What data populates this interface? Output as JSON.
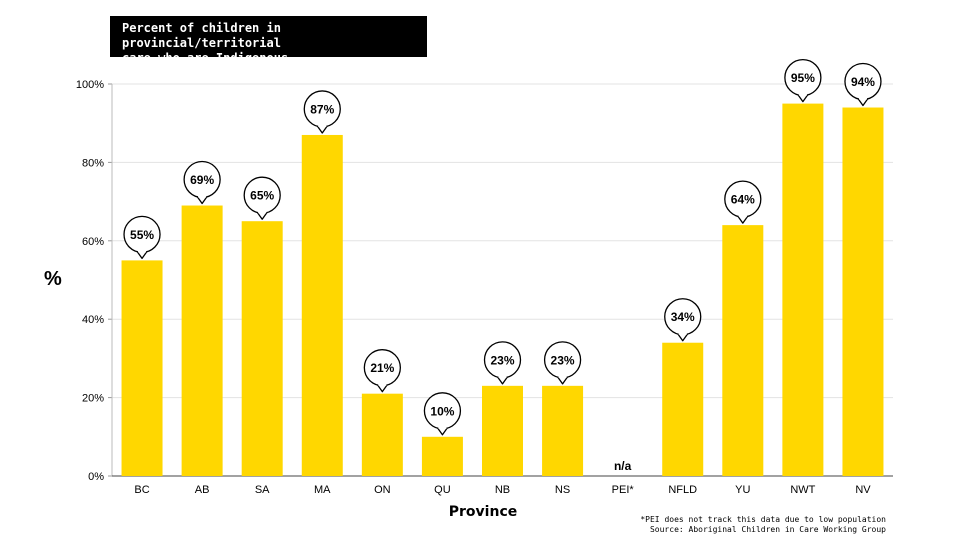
{
  "chart_data": {
    "type": "bar",
    "title_lines": [
      "Percent of children in provincial/territorial",
      "care who are Indigenous"
    ],
    "xlabel": "Province",
    "ylabel": "%",
    "categories": [
      "BC",
      "AB",
      "SA",
      "MA",
      "ON",
      "QU",
      "NB",
      "NS",
      "PEI*",
      "NFLD",
      "YU",
      "NWT",
      "NV"
    ],
    "values": [
      55,
      69,
      65,
      87,
      21,
      10,
      23,
      23,
      null,
      34,
      64,
      95,
      94
    ],
    "data_labels": [
      "55%",
      "69%",
      "65%",
      "87%",
      "21%",
      "10%",
      "23%",
      "23%",
      "n/a",
      "34%",
      "64%",
      "95%",
      "94%"
    ],
    "y_ticks": [
      "0%",
      "20%",
      "40%",
      "60%",
      "80%",
      "100%"
    ],
    "ylim": [
      0,
      100
    ],
    "grid": true,
    "bar_color": "#FFD700",
    "notes": [
      "*PEI does not track this data due to low population",
      "Source: Aboriginal Children in Care Working Group"
    ]
  }
}
